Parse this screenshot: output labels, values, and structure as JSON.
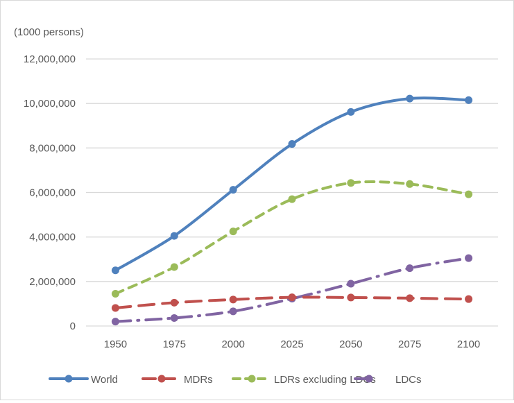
{
  "chart_data": {
    "type": "line",
    "title": "",
    "unit_label": "(1000 persons)",
    "xlabel": "",
    "ylabel": "(1000 persons)",
    "x": [
      "1950",
      "1975",
      "2000",
      "2025",
      "2050",
      "2075",
      "2100"
    ],
    "ylim": [
      0,
      12000000
    ],
    "yticks": [
      0,
      2000000,
      4000000,
      6000000,
      8000000,
      10000000,
      12000000
    ],
    "ytick_labels": [
      "0",
      "2,000,000",
      "4,000,000",
      "6,000,000",
      "8,000,000",
      "10,000,000",
      "12,000,000"
    ],
    "grid": true,
    "legend_position": "bottom",
    "series": [
      {
        "name": "World",
        "color": "#4f81bd",
        "dash": "solid",
        "values": [
          2500000,
          4050000,
          6120000,
          8180000,
          9620000,
          10220000,
          10150000
        ]
      },
      {
        "name": "MDRs",
        "color": "#c0504d",
        "dash": "dash",
        "values": [
          810000,
          1050000,
          1190000,
          1290000,
          1280000,
          1250000,
          1210000
        ]
      },
      {
        "name": "LDRs excluding LDCs",
        "color": "#9bbb59",
        "dash": "shortdash",
        "values": [
          1450000,
          2650000,
          4250000,
          5700000,
          6430000,
          6380000,
          5920000
        ]
      },
      {
        "name": "LDCs",
        "color": "#8064a2",
        "dash": "dashdot",
        "values": [
          200000,
          360000,
          660000,
          1230000,
          1900000,
          2600000,
          3050000
        ]
      }
    ]
  }
}
